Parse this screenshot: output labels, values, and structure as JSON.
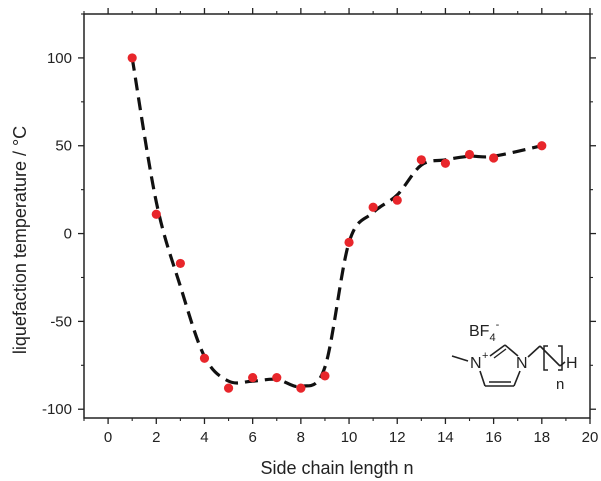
{
  "chart_data": {
    "type": "scatter",
    "xlabel": "Side chain length n",
    "ylabel": "liquefaction temperature / °C",
    "xlim": [
      -1,
      20
    ],
    "ylim": [
      -105,
      125
    ],
    "x_ticks": [
      0,
      2,
      4,
      6,
      8,
      10,
      12,
      14,
      16,
      18,
      20
    ],
    "y_ticks": [
      -100,
      -50,
      0,
      50,
      100
    ],
    "series": [
      {
        "style": "markers",
        "color": "#e8262b",
        "points": [
          {
            "x": 1,
            "y": 100
          },
          {
            "x": 2,
            "y": 11
          },
          {
            "x": 3,
            "y": -17
          },
          {
            "x": 4,
            "y": -71
          },
          {
            "x": 5,
            "y": -88
          },
          {
            "x": 6,
            "y": -82
          },
          {
            "x": 7,
            "y": -82
          },
          {
            "x": 8,
            "y": -88
          },
          {
            "x": 9,
            "y": -81
          },
          {
            "x": 10,
            "y": -5
          },
          {
            "x": 11,
            "y": 15
          },
          {
            "x": 12,
            "y": 19
          },
          {
            "x": 13,
            "y": 42
          },
          {
            "x": 14,
            "y": 40
          },
          {
            "x": 15,
            "y": 45
          },
          {
            "x": 16,
            "y": 43
          },
          {
            "x": 18,
            "y": 50
          }
        ]
      },
      {
        "style": "dashed-trend",
        "color": "#111111",
        "points": [
          {
            "x": 1,
            "y": 100
          },
          {
            "x": 2,
            "y": 18
          },
          {
            "x": 3,
            "y": -30
          },
          {
            "x": 4,
            "y": -70
          },
          {
            "x": 5,
            "y": -84
          },
          {
            "x": 6,
            "y": -84
          },
          {
            "x": 7,
            "y": -83
          },
          {
            "x": 8,
            "y": -87
          },
          {
            "x": 9,
            "y": -76
          },
          {
            "x": 10,
            "y": -5
          },
          {
            "x": 11,
            "y": 12
          },
          {
            "x": 12,
            "y": 22
          },
          {
            "x": 13,
            "y": 39
          },
          {
            "x": 14,
            "y": 42
          },
          {
            "x": 15,
            "y": 44
          },
          {
            "x": 16,
            "y": 44
          },
          {
            "x": 18,
            "y": 50
          }
        ]
      }
    ],
    "grid": false,
    "legend": "none",
    "inset_structure": {
      "anion": "BF",
      "anion_subscript": "4",
      "anion_superscript": "-",
      "n_atom_1": "N",
      "n_atom_1_charge": "+",
      "n_atom_2": "N",
      "terminal_atom": "H",
      "repeat_label": "n"
    }
  }
}
